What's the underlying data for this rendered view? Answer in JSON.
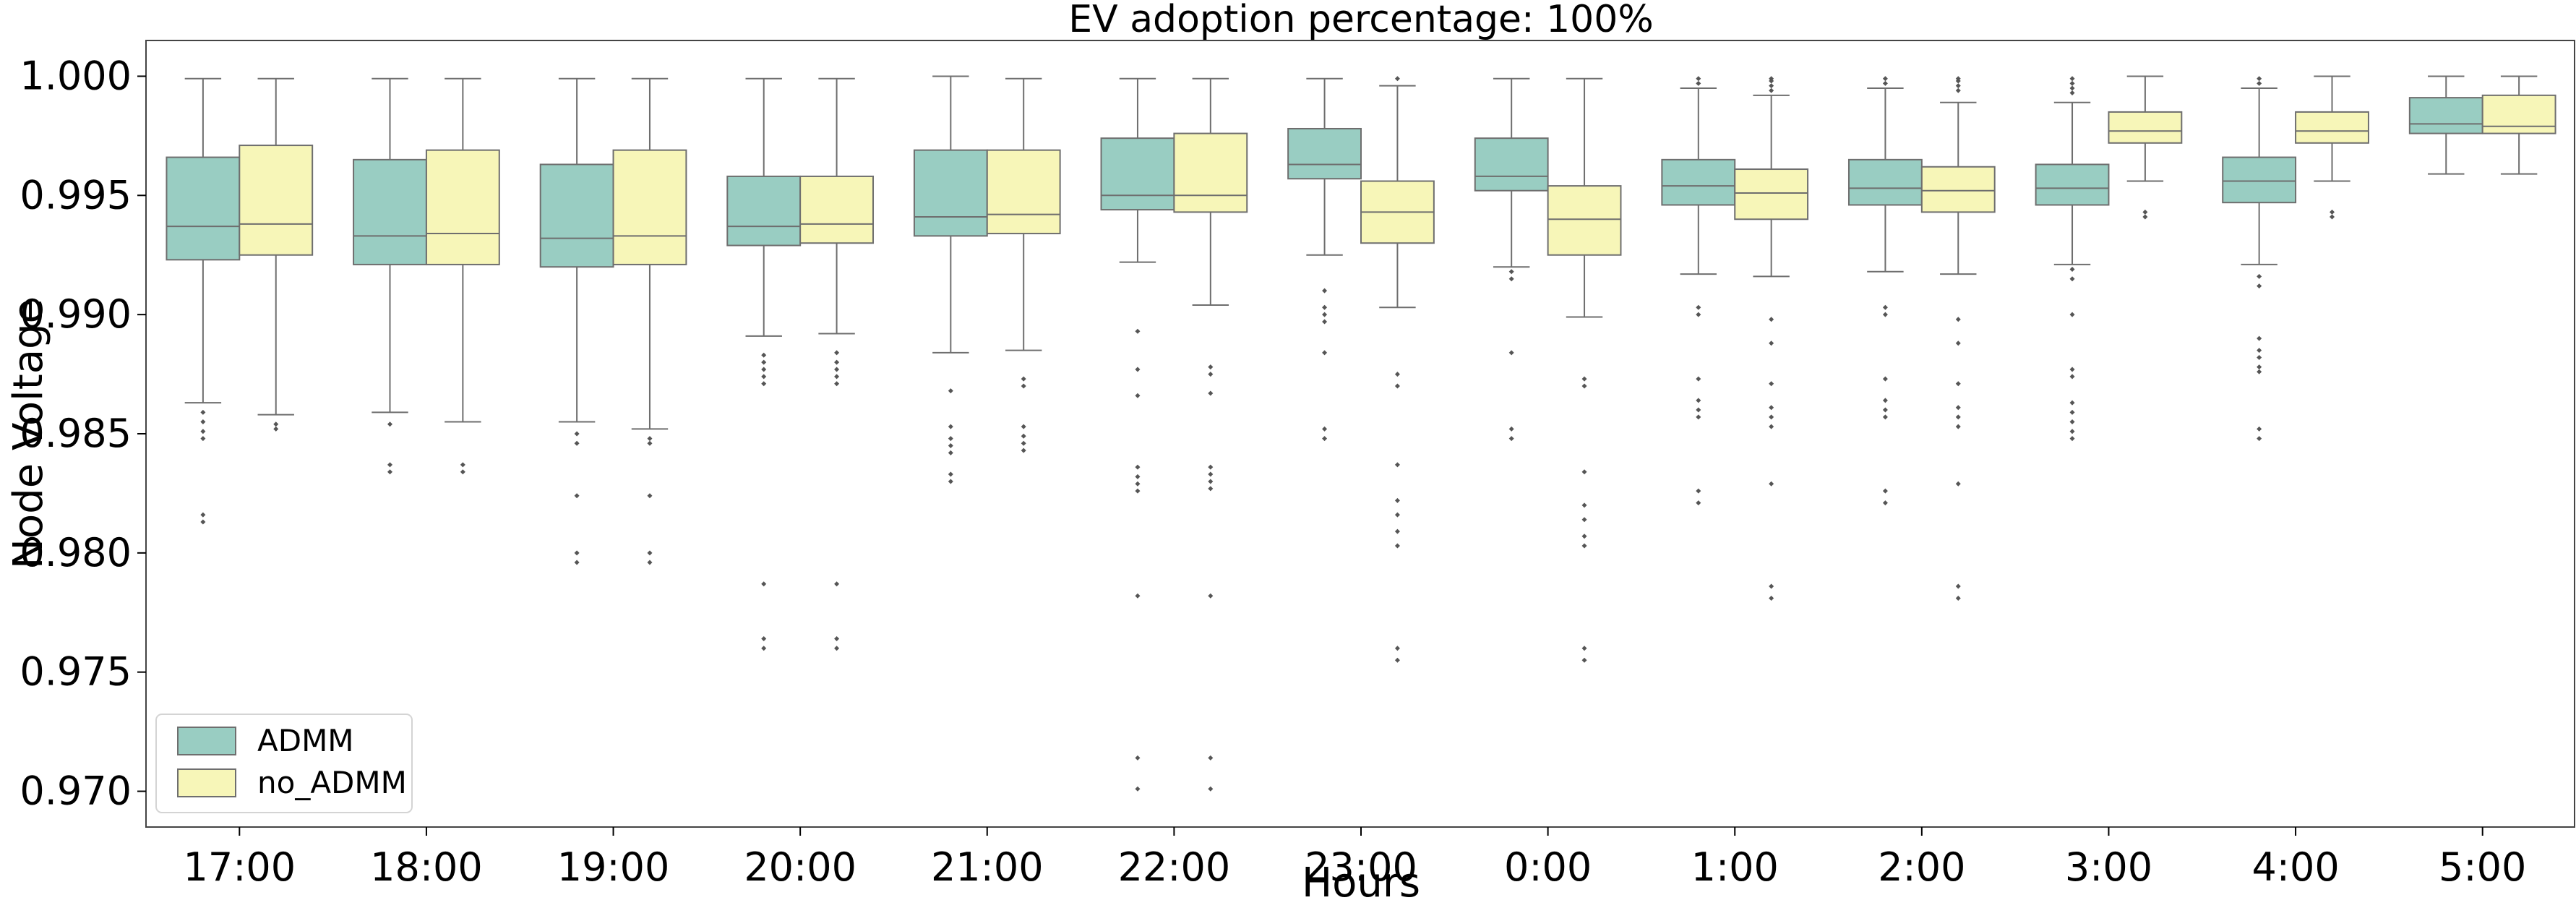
{
  "chart_data": {
    "type": "box",
    "title": "EV adoption percentage: 100%",
    "xlabel": "Hours",
    "ylabel": "Node Voltage",
    "ylim": [
      0.9685,
      1.0015
    ],
    "yticks": [
      0.97,
      0.975,
      0.98,
      0.985,
      0.99,
      0.995,
      1.0
    ],
    "ytick_labels": [
      "0.970",
      "0.975",
      "0.980",
      "0.985",
      "0.990",
      "0.995",
      "1.000"
    ],
    "categories": [
      "17:00",
      "18:00",
      "19:00",
      "20:00",
      "21:00",
      "22:00",
      "23:00",
      "0:00",
      "1:00",
      "2:00",
      "3:00",
      "4:00",
      "5:00"
    ],
    "legend_position": "lower-left",
    "grid": false,
    "series": [
      {
        "name": "ADMM",
        "color": "#99cdc2",
        "boxes": [
          {
            "whislo": 0.9863,
            "q1": 0.9923,
            "med": 0.9937,
            "q3": 0.9966,
            "whishi": 0.9999,
            "fliers": [
              0.9859,
              0.9855,
              0.9851,
              0.9848,
              0.9816,
              0.9813
            ]
          },
          {
            "whislo": 0.9859,
            "q1": 0.9921,
            "med": 0.9933,
            "q3": 0.9965,
            "whishi": 0.9999,
            "fliers": [
              0.9854,
              0.9837,
              0.9834
            ]
          },
          {
            "whislo": 0.9855,
            "q1": 0.992,
            "med": 0.9932,
            "q3": 0.9963,
            "whishi": 0.9999,
            "fliers": [
              0.985,
              0.9846,
              0.9824,
              0.98,
              0.9796
            ]
          },
          {
            "whislo": 0.9891,
            "q1": 0.9929,
            "med": 0.9937,
            "q3": 0.9958,
            "whishi": 0.9999,
            "fliers": [
              0.9883,
              0.988,
              0.9877,
              0.9874,
              0.9871,
              0.9787,
              0.9764,
              0.976
            ]
          },
          {
            "whislo": 0.9884,
            "q1": 0.9933,
            "med": 0.9941,
            "q3": 0.9969,
            "whishi": 1.0,
            "fliers": [
              0.9868,
              0.9853,
              0.9848,
              0.9845,
              0.9842,
              0.9833,
              0.983
            ]
          },
          {
            "whislo": 0.9922,
            "q1": 0.9944,
            "med": 0.995,
            "q3": 0.9974,
            "whishi": 0.9999,
            "fliers": [
              0.9893,
              0.9877,
              0.9866,
              0.9836,
              0.9832,
              0.9829,
              0.9826,
              0.9782,
              0.9714,
              0.9701
            ]
          },
          {
            "whislo": 0.9925,
            "q1": 0.9957,
            "med": 0.9963,
            "q3": 0.9978,
            "whishi": 0.9999,
            "fliers": [
              0.991,
              0.9903,
              0.99,
              0.9897,
              0.9884,
              0.9852,
              0.9848
            ]
          },
          {
            "whislo": 0.992,
            "q1": 0.9952,
            "med": 0.9958,
            "q3": 0.9974,
            "whishi": 0.9999,
            "fliers": [
              0.9918,
              0.9915,
              0.9884,
              0.9852,
              0.9848
            ]
          },
          {
            "whislo": 0.9917,
            "q1": 0.9946,
            "med": 0.9954,
            "q3": 0.9965,
            "whishi": 0.9995,
            "fliers": [
              0.9999,
              0.9997,
              0.9903,
              0.99,
              0.9873,
              0.9864,
              0.986,
              0.9857,
              0.9826,
              0.9821
            ]
          },
          {
            "whislo": 0.9918,
            "q1": 0.9946,
            "med": 0.9953,
            "q3": 0.9965,
            "whishi": 0.9995,
            "fliers": [
              0.9999,
              0.9997,
              0.9903,
              0.99,
              0.9873,
              0.9864,
              0.986,
              0.9857,
              0.9826,
              0.9821
            ]
          },
          {
            "whislo": 0.9921,
            "q1": 0.9946,
            "med": 0.9953,
            "q3": 0.9963,
            "whishi": 0.9989,
            "fliers": [
              0.9999,
              0.9997,
              0.9995,
              0.9993,
              0.9919,
              0.9915,
              0.99,
              0.9877,
              0.9874,
              0.9863,
              0.9859,
              0.9855,
              0.9851,
              0.9848
            ]
          },
          {
            "whislo": 0.9921,
            "q1": 0.9947,
            "med": 0.9956,
            "q3": 0.9966,
            "whishi": 0.9995,
            "fliers": [
              0.9999,
              0.9997,
              0.9916,
              0.9912,
              0.989,
              0.9885,
              0.9882,
              0.9878,
              0.9876,
              0.9852,
              0.9848
            ]
          },
          {
            "whislo": 0.9959,
            "q1": 0.9976,
            "med": 0.998,
            "q3": 0.9991,
            "whishi": 1.0,
            "fliers": []
          }
        ]
      },
      {
        "name": "no_ADMM",
        "color": "#f7f6b8",
        "boxes": [
          {
            "whislo": 0.9858,
            "q1": 0.9925,
            "med": 0.9938,
            "q3": 0.9971,
            "whishi": 0.9999,
            "fliers": [
              0.9854,
              0.9852
            ]
          },
          {
            "whislo": 0.9855,
            "q1": 0.9921,
            "med": 0.9934,
            "q3": 0.9969,
            "whishi": 0.9999,
            "fliers": [
              0.9837,
              0.9834
            ]
          },
          {
            "whislo": 0.9852,
            "q1": 0.9921,
            "med": 0.9933,
            "q3": 0.9969,
            "whishi": 0.9999,
            "fliers": [
              0.9848,
              0.9846,
              0.9824,
              0.98,
              0.9796
            ]
          },
          {
            "whislo": 0.9892,
            "q1": 0.993,
            "med": 0.9938,
            "q3": 0.9958,
            "whishi": 0.9999,
            "fliers": [
              0.9884,
              0.988,
              0.9877,
              0.9874,
              0.9871,
              0.9787,
              0.9764,
              0.976
            ]
          },
          {
            "whislo": 0.9885,
            "q1": 0.9934,
            "med": 0.9942,
            "q3": 0.9969,
            "whishi": 0.9999,
            "fliers": [
              0.9873,
              0.987,
              0.9853,
              0.9849,
              0.9846,
              0.9843
            ]
          },
          {
            "whislo": 0.9904,
            "q1": 0.9943,
            "med": 0.995,
            "q3": 0.9976,
            "whishi": 0.9999,
            "fliers": [
              0.9878,
              0.9875,
              0.9867,
              0.9836,
              0.9833,
              0.983,
              0.9827,
              0.9782,
              0.9714,
              0.9701
            ]
          },
          {
            "whislo": 0.9903,
            "q1": 0.993,
            "med": 0.9943,
            "q3": 0.9956,
            "whishi": 0.9996,
            "fliers": [
              0.9999,
              0.9875,
              0.987,
              0.9837,
              0.9822,
              0.9816,
              0.9809,
              0.9803,
              0.976,
              0.9755
            ]
          },
          {
            "whislo": 0.9899,
            "q1": 0.9925,
            "med": 0.994,
            "q3": 0.9954,
            "whishi": 0.9999,
            "fliers": [
              0.9873,
              0.987,
              0.9834,
              0.982,
              0.9814,
              0.9807,
              0.9803,
              0.976,
              0.9755
            ]
          },
          {
            "whislo": 0.9916,
            "q1": 0.994,
            "med": 0.9951,
            "q3": 0.9961,
            "whishi": 0.9992,
            "fliers": [
              0.9999,
              0.9998,
              0.9996,
              0.9994,
              0.9898,
              0.9888,
              0.9871,
              0.9861,
              0.9857,
              0.9853,
              0.9829,
              0.9786,
              0.9781
            ]
          },
          {
            "whislo": 0.9917,
            "q1": 0.9943,
            "med": 0.9952,
            "q3": 0.9962,
            "whishi": 0.9989,
            "fliers": [
              0.9999,
              0.9998,
              0.9996,
              0.9994,
              0.9898,
              0.9888,
              0.9871,
              0.9861,
              0.9857,
              0.9853,
              0.9829,
              0.9786,
              0.9781
            ]
          },
          {
            "whislo": 0.9956,
            "q1": 0.9972,
            "med": 0.9977,
            "q3": 0.9985,
            "whishi": 1.0,
            "fliers": [
              0.9943,
              0.9941
            ]
          },
          {
            "whislo": 0.9956,
            "q1": 0.9972,
            "med": 0.9977,
            "q3": 0.9985,
            "whishi": 1.0,
            "fliers": [
              0.9943,
              0.9941
            ]
          },
          {
            "whislo": 0.9959,
            "q1": 0.9976,
            "med": 0.9979,
            "q3": 0.9992,
            "whishi": 1.0,
            "fliers": []
          }
        ]
      }
    ]
  }
}
